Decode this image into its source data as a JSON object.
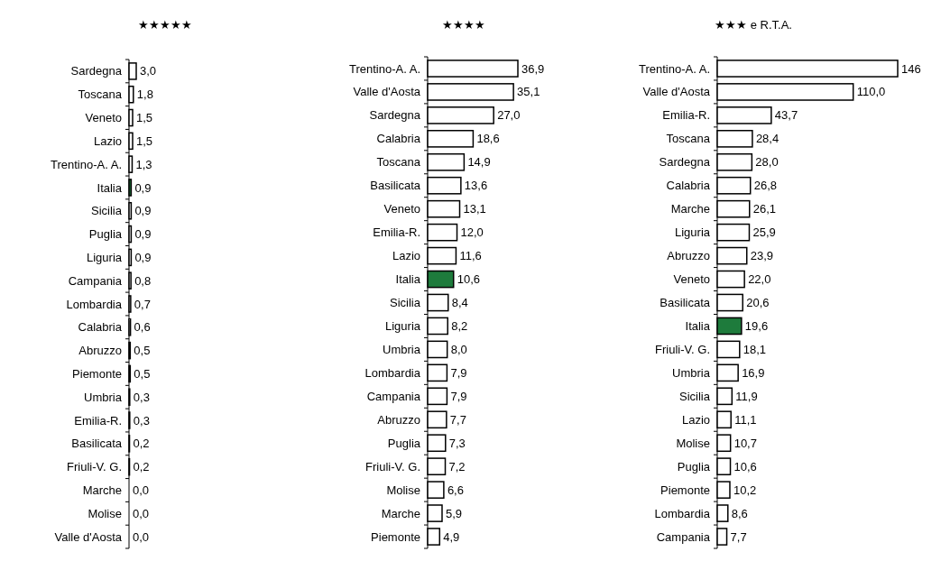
{
  "chart_data": [
    {
      "type": "bar",
      "title": "★★★★★",
      "orientation": "horizontal",
      "categories": [
        "Sardegna",
        "Toscana",
        "Veneto",
        "Lazio",
        "Trentino-A. A.",
        "Italia",
        "Sicilia",
        "Puglia",
        "Liguria",
        "Campania",
        "Lombardia",
        "Calabria",
        "Abruzzo",
        "Piemonte",
        "Umbria",
        "Emilia-R.",
        "Basilicata",
        "Friuli-V. G.",
        "Marche",
        "Molise",
        "Valle d'Aosta"
      ],
      "values": [
        3.0,
        1.8,
        1.5,
        1.5,
        1.3,
        0.9,
        0.9,
        0.9,
        0.9,
        0.8,
        0.7,
        0.6,
        0.5,
        0.5,
        0.3,
        0.3,
        0.2,
        0.2,
        0.0,
        0.0,
        0.0
      ],
      "value_labels": [
        "3,0",
        "1,8",
        "1,5",
        "1,5",
        "1,3",
        "0,9",
        "0,9",
        "0,9",
        "0,9",
        "0,8",
        "0,7",
        "0,6",
        "0,5",
        "0,5",
        "0,3",
        "0,3",
        "0,2",
        "0,2",
        "0,0",
        "0,0",
        "0,0"
      ],
      "colors": [
        "#ffffff",
        "#ffffff",
        "#ffffff",
        "#ffffff",
        "#ffffff",
        "#1e7b3c",
        "#ffffff",
        "#ffffff",
        "#ffffff",
        "#ffffff",
        "#ffffff",
        "#ffffff",
        "#ffffff",
        "#ffffff",
        "#ffffff",
        "#ffffff",
        "#ffffff",
        "#ffffff",
        "#ffffff",
        "#ffffff",
        "#ffffff"
      ]
    },
    {
      "type": "bar",
      "title": "★★★★",
      "orientation": "horizontal",
      "categories": [
        "Trentino-A. A.",
        "Valle d'Aosta",
        "Sardegna",
        "Calabria",
        "Toscana",
        "Basilicata",
        "Veneto",
        "Emilia-R.",
        "Lazio",
        "Italia",
        "Sicilia",
        "Liguria",
        "Umbria",
        "Lombardia",
        "Campania",
        "Abruzzo",
        "Puglia",
        "Friuli-V. G.",
        "Molise",
        "Marche",
        "Piemonte"
      ],
      "values": [
        36.9,
        35.1,
        27.0,
        18.6,
        14.9,
        13.6,
        13.1,
        12.0,
        11.6,
        10.6,
        8.4,
        8.2,
        8.0,
        7.9,
        7.9,
        7.7,
        7.3,
        7.2,
        6.6,
        5.9,
        4.9
      ],
      "value_labels": [
        "36,9",
        "35,1",
        "27,0",
        "18,6",
        "14,9",
        "13,6",
        "13,1",
        "12,0",
        "11,6",
        "10,6",
        "8,4",
        "8,2",
        "8,0",
        "7,9",
        "7,9",
        "7,7",
        "7,3",
        "7,2",
        "6,6",
        "5,9",
        "4,9"
      ],
      "colors": [
        "#ffffff",
        "#ffffff",
        "#ffffff",
        "#ffffff",
        "#ffffff",
        "#ffffff",
        "#ffffff",
        "#ffffff",
        "#ffffff",
        "#1e7b3c",
        "#ffffff",
        "#ffffff",
        "#ffffff",
        "#ffffff",
        "#ffffff",
        "#ffffff",
        "#ffffff",
        "#ffffff",
        "#ffffff",
        "#ffffff",
        "#ffffff"
      ]
    },
    {
      "type": "bar",
      "title": "★★★ e R.T.A.",
      "orientation": "horizontal",
      "categories": [
        "Trentino-A. A.",
        "Valle d'Aosta",
        "Emilia-R.",
        "Toscana",
        "Sardegna",
        "Calabria",
        "Marche",
        "Liguria",
        "Abruzzo",
        "Veneto",
        "Basilicata",
        "Italia",
        "Friuli-V. G.",
        "Umbria",
        "Sicilia",
        "Lazio",
        "Molise",
        "Puglia",
        "Piemonte",
        "Lombardia",
        "Campania"
      ],
      "values": [
        146,
        110.0,
        43.7,
        28.4,
        28.0,
        26.8,
        26.1,
        25.9,
        23.9,
        22.0,
        20.6,
        19.6,
        18.1,
        16.9,
        11.9,
        11.1,
        10.7,
        10.6,
        10.2,
        8.6,
        7.7
      ],
      "value_labels": [
        "146",
        "110,0",
        "43,7",
        "28,4",
        "28,0",
        "26,8",
        "26,1",
        "25,9",
        "23,9",
        "22,0",
        "20,6",
        "19,6",
        "18,1",
        "16,9",
        "11,9",
        "11,1",
        "10,7",
        "10,6",
        "10,2",
        "8,6",
        "7,7"
      ],
      "colors": [
        "#ffffff",
        "#ffffff",
        "#ffffff",
        "#ffffff",
        "#ffffff",
        "#ffffff",
        "#ffffff",
        "#ffffff",
        "#ffffff",
        "#ffffff",
        "#ffffff",
        "#1e7b3c",
        "#ffffff",
        "#ffffff",
        "#ffffff",
        "#ffffff",
        "#ffffff",
        "#ffffff",
        "#ffffff",
        "#ffffff",
        "#ffffff"
      ]
    }
  ]
}
